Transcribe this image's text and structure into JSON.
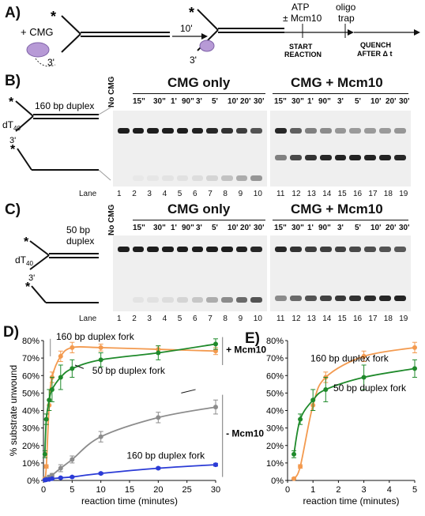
{
  "panel_labels": {
    "a": "A)",
    "b": "B)",
    "c": "C)",
    "d": "D)",
    "e": "E)"
  },
  "scheme": {
    "plus_cmg": "+ CMG",
    "star": "*",
    "three_prime": "3'",
    "ten_min": "10'",
    "atp": "ATP",
    "mcm10": "± Mcm10",
    "oligo": "oligo",
    "trap": "trap",
    "start": "START",
    "reaction": "REACTION",
    "quench": "QUENCH",
    "after": "AFTER Δ t"
  },
  "gels": {
    "no_cmg": "No CMG",
    "cmg_only": "CMG only",
    "cmg_mcm10": "CMG + Mcm10",
    "lane_word": "Lane",
    "timepoints_left": [
      "15\"",
      "30\"",
      "1'",
      "90\"",
      "3'",
      "5'",
      "10'",
      "20'",
      "30'"
    ],
    "timepoints_right": [
      "15\"",
      "30\"",
      "1'",
      "90\"",
      "3'",
      "5'",
      "10'",
      "20'",
      "30'"
    ],
    "lanes": [
      "1",
      "2",
      "3",
      "4",
      "5",
      "6",
      "7",
      "8",
      "9",
      "10",
      "11",
      "12",
      "13",
      "14",
      "15",
      "16",
      "17",
      "18",
      "19"
    ],
    "b_label": "160 bp duplex",
    "dt": "dT",
    "dt_sub": "40",
    "c_label_1": "50 bp",
    "c_label_2": "duplex",
    "colors": {
      "band": "#111111",
      "gel": "#efefef"
    }
  },
  "chart_data": [
    {
      "type": "line",
      "panel": "D",
      "xlabel": "reaction time (minutes)",
      "ylabel": "% substrate unwound",
      "xlim": [
        0,
        30
      ],
      "ylim": [
        0,
        80
      ],
      "xticks": [
        0,
        5,
        10,
        15,
        20,
        25,
        30
      ],
      "yticks": [
        0,
        10,
        20,
        30,
        40,
        50,
        60,
        70,
        80
      ],
      "ytick_format": "percent",
      "group_labels": [
        "+ Mcm10",
        "- Mcm10"
      ],
      "annotations": [
        "160 bp duplex fork",
        "50 bp duplex fork",
        "160 bp duplex fork"
      ],
      "series": [
        {
          "color": "#f39a4f",
          "group": "+ Mcm10",
          "x": [
            0.25,
            0.5,
            1,
            1.5,
            3,
            5,
            10,
            20,
            30
          ],
          "y": [
            1,
            8,
            43,
            59,
            71,
            76,
            76,
            75,
            74
          ],
          "err": [
            0.5,
            1,
            3,
            3,
            3,
            3,
            2,
            2,
            2
          ]
        },
        {
          "color": "#1f8a2b",
          "group": "+ Mcm10",
          "x": [
            0.25,
            0.5,
            1,
            1.5,
            3,
            5,
            10,
            20,
            30
          ],
          "y": [
            15,
            35,
            46,
            52,
            59,
            64,
            69,
            73,
            78
          ],
          "err": [
            2,
            3,
            6,
            7,
            7,
            5,
            4,
            4,
            3
          ]
        },
        {
          "color": "#8c8c8c",
          "group": "- Mcm10",
          "x": [
            0.25,
            0.5,
            1,
            1.5,
            3,
            5,
            10,
            20,
            30
          ],
          "y": [
            0.5,
            1,
            2,
            3,
            7,
            12,
            25,
            36,
            42
          ],
          "err": [
            0.3,
            0.5,
            1,
            1,
            2,
            2,
            3,
            3,
            4
          ]
        },
        {
          "color": "#2b3bd6",
          "group": "- Mcm10",
          "x": [
            0.25,
            0.5,
            1,
            1.5,
            3,
            5,
            10,
            20,
            30
          ],
          "y": [
            0.2,
            0.4,
            0.6,
            1,
            1.5,
            2,
            4,
            7,
            9
          ],
          "err": [
            0.2,
            0.2,
            0.3,
            0.3,
            0.5,
            0.5,
            0.6,
            0.6,
            0.8
          ]
        }
      ]
    },
    {
      "type": "line",
      "panel": "E",
      "xlabel": "reaction time (minutes)",
      "ylabel": "",
      "xlim": [
        0,
        5
      ],
      "ylim": [
        0,
        80
      ],
      "xticks": [
        0,
        1,
        2,
        3,
        4,
        5
      ],
      "yticks": [
        0,
        10,
        20,
        30,
        40,
        50,
        60,
        70,
        80
      ],
      "ytick_format": "percent",
      "annotations": [
        "160 bp duplex fork",
        "50 bp duplex fork"
      ],
      "series": [
        {
          "color": "#f39a4f",
          "x": [
            0.25,
            0.5,
            1,
            1.5,
            3,
            5
          ],
          "y": [
            1,
            8,
            43,
            59,
            71,
            76
          ],
          "err": [
            0.5,
            1,
            3,
            3,
            3,
            3
          ]
        },
        {
          "color": "#1f8a2b",
          "x": [
            0.25,
            0.5,
            1,
            1.5,
            3,
            5
          ],
          "y": [
            15,
            35,
            46,
            52,
            59,
            64
          ],
          "err": [
            2,
            3,
            6,
            7,
            7,
            5
          ]
        }
      ]
    }
  ]
}
